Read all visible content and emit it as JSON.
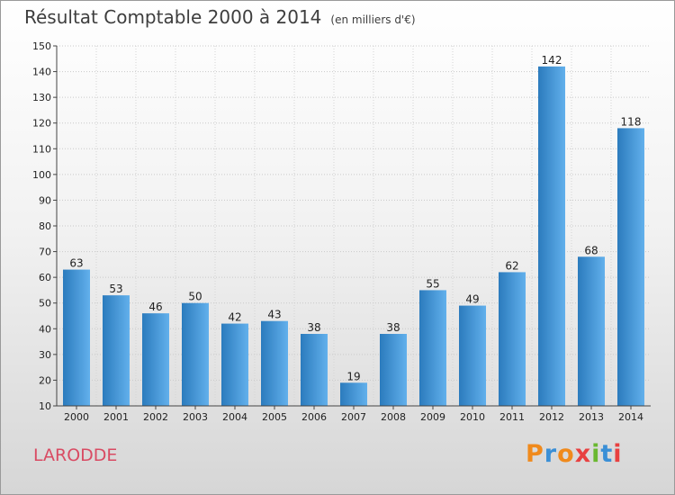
{
  "header": {
    "title": "Résultat Comptable 2000 à 2014",
    "unit": "(en milliers d'€)"
  },
  "footer": {
    "commune": "LARODDE",
    "brand_letters": [
      "P",
      "r",
      "o",
      "x",
      "i",
      "t",
      "i"
    ],
    "brand_colors": [
      "#f08a1c",
      "#3a8fd6",
      "#f08a1c",
      "#e84040",
      "#6ab830",
      "#3a8fd6",
      "#e84040"
    ]
  },
  "colors": {
    "bar_dark": "#2b7bbd",
    "bar_light": "#62b0ec",
    "commune": "#d94b63"
  },
  "chart_data": {
    "type": "bar",
    "title": "Résultat Comptable 2000 à 2014",
    "categories": [
      "2000",
      "2001",
      "2002",
      "2003",
      "2004",
      "2005",
      "2006",
      "2007",
      "2008",
      "2009",
      "2010",
      "2011",
      "2012",
      "2013",
      "2014"
    ],
    "values": [
      63,
      53,
      46,
      50,
      42,
      43,
      38,
      19,
      38,
      55,
      49,
      62,
      142,
      68,
      118
    ],
    "ylim": [
      10,
      150
    ],
    "yticks": [
      10,
      20,
      30,
      40,
      50,
      60,
      70,
      80,
      90,
      100,
      110,
      120,
      130,
      140,
      150
    ],
    "grid": true,
    "data_labels": true
  }
}
